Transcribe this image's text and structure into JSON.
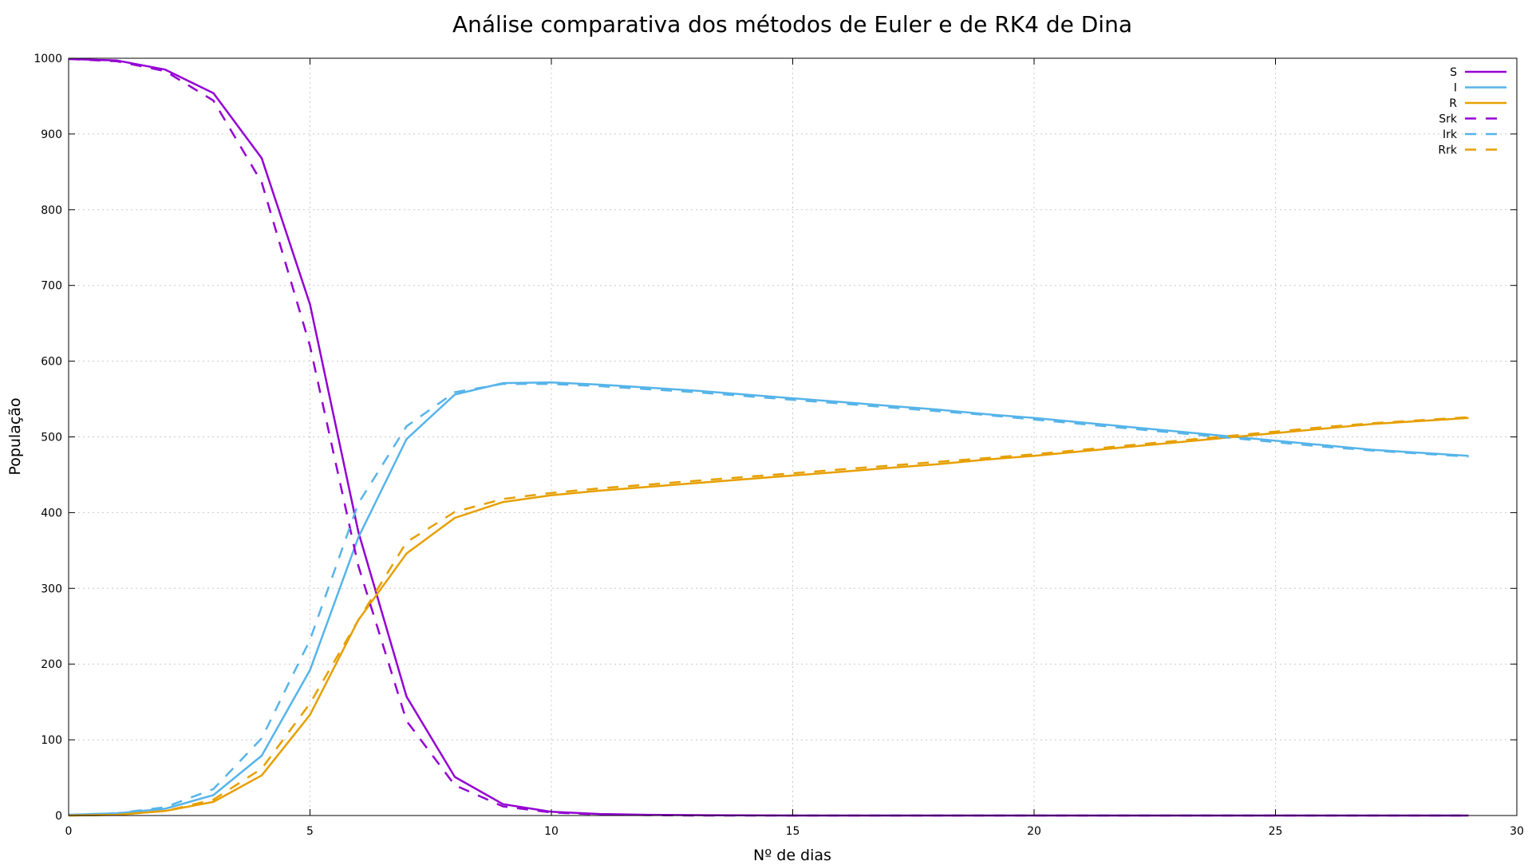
{
  "chart_data": {
    "type": "line",
    "title": "Análise comparativa dos métodos de Euler e de RK4 de Dina",
    "xlabel": "Nº de dias",
    "ylabel": "População",
    "xlim": [
      0,
      30
    ],
    "ylim": [
      0,
      1000
    ],
    "xticks": [
      "0",
      "5",
      "10",
      "15",
      "20",
      "25",
      "30"
    ],
    "yticks": [
      "0",
      "100",
      "200",
      "300",
      "400",
      "500",
      "600",
      "700",
      "800",
      "900",
      "1000"
    ],
    "grid": true,
    "legend_position": "top-right",
    "x": [
      0,
      1,
      2,
      3,
      4,
      5,
      6,
      7,
      8,
      9,
      10,
      11,
      12,
      13,
      14,
      15,
      16,
      17,
      18,
      19,
      20,
      21,
      22,
      23,
      24,
      25,
      26,
      27,
      28,
      29
    ],
    "series": [
      {
        "name": "S",
        "style": "solid",
        "color": "#9400d3",
        "values": [
          999,
          997,
          985,
          954,
          868,
          675,
          375,
          157,
          51,
          15,
          5,
          2,
          1,
          0.5,
          0.2,
          0,
          0,
          0,
          0,
          0,
          0,
          0,
          0,
          0,
          0,
          0,
          0,
          0,
          0,
          0
        ]
      },
      {
        "name": "I",
        "style": "solid",
        "color": "#56b4e9",
        "values": [
          1,
          3,
          9,
          27,
          79,
          192,
          367,
          497,
          556,
          571,
          572,
          569,
          565,
          561,
          556,
          551,
          546,
          541,
          536,
          530,
          525,
          519,
          513,
          507,
          501,
          495,
          489,
          483,
          479,
          475
        ]
      },
      {
        "name": "R",
        "style": "solid",
        "color": "#e69f00",
        "values": [
          0,
          1,
          6,
          18,
          53,
          133,
          258,
          346,
          393,
          414,
          423,
          429,
          434,
          439,
          444,
          449,
          454,
          459,
          464,
          470,
          475,
          481,
          487,
          493,
          499,
          505,
          511,
          517,
          521,
          525
        ]
      },
      {
        "name": "Srk",
        "style": "dashed",
        "color": "#9400d3",
        "values": [
          999,
          996,
          983,
          944,
          836,
          620,
          330,
          125,
          40,
          12,
          4,
          1.5,
          0.5,
          0,
          0,
          0,
          0,
          0,
          0,
          0,
          0,
          0,
          0,
          0,
          0,
          0,
          0,
          0,
          0,
          0
        ]
      },
      {
        "name": "Irk",
        "style": "dashed",
        "color": "#56b4e9",
        "values": [
          1,
          3,
          11,
          35,
          102,
          232,
          412,
          514,
          559,
          570,
          570,
          567,
          563,
          559,
          554,
          549,
          544,
          539,
          534,
          529,
          523,
          517,
          511,
          505,
          499,
          493,
          487,
          482,
          478,
          474
        ]
      },
      {
        "name": "Rrk",
        "style": "dashed",
        "color": "#e69f00",
        "values": [
          0,
          1,
          6,
          21,
          62,
          148,
          258,
          361,
          401,
          418,
          426,
          432,
          437,
          442,
          447,
          452,
          457,
          462,
          467,
          472,
          477,
          483,
          489,
          495,
          501,
          507,
          513,
          518,
          522,
          526
        ]
      }
    ]
  }
}
